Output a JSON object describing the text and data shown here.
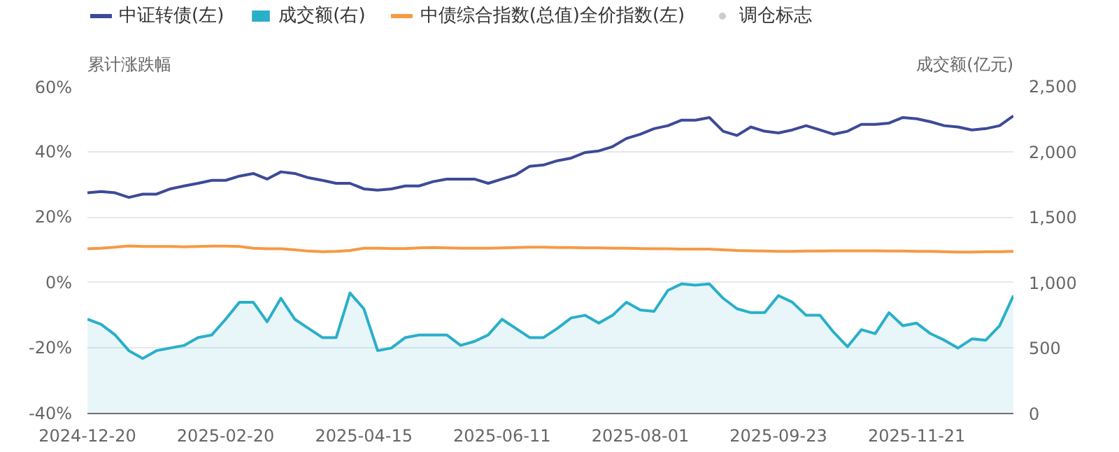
{
  "chart_data": {
    "type": "line",
    "categories": [
      "2024-12-20",
      null,
      null,
      null,
      null,
      null,
      null,
      null,
      null,
      null,
      "2025-02-20",
      null,
      null,
      null,
      null,
      null,
      null,
      null,
      null,
      null,
      "2025-04-15",
      null,
      null,
      null,
      null,
      null,
      null,
      null,
      null,
      null,
      "2025-06-11",
      null,
      null,
      null,
      null,
      null,
      null,
      null,
      null,
      null,
      "2025-08-01",
      null,
      null,
      null,
      null,
      null,
      null,
      null,
      null,
      null,
      "2025-09-23",
      null,
      null,
      null,
      null,
      null,
      null,
      null,
      null,
      null,
      "2025-11-21",
      null,
      null,
      null,
      null,
      null,
      null,
      null
    ],
    "series": [
      {
        "name": "中证转债(左)",
        "color": "#3d4a97",
        "values": [
          27.4,
          27.8,
          27.4,
          26,
          27,
          27,
          28.6,
          29.5,
          30.3,
          31.2,
          31.2,
          32.5,
          33.3,
          31.6,
          33.8,
          33.3,
          32,
          31.2,
          30.3,
          30.3,
          28.6,
          28.2,
          28.6,
          29.5,
          29.5,
          30.8,
          31.6,
          31.6,
          31.6,
          30.3,
          31.6,
          32.9,
          35.5,
          35.9,
          37.2,
          38,
          39.7,
          40.2,
          41.5,
          44,
          45.3,
          47,
          47.9,
          49.6,
          49.6,
          50.4,
          46.2,
          44.9,
          47.5,
          46.2,
          45.7,
          46.6,
          47.9,
          46.6,
          45.3,
          46.2,
          48.3,
          48.3,
          48.7,
          50.4,
          50,
          49.1,
          47.9,
          47.5,
          46.6,
          47,
          47.9,
          50.9
        ]
      },
      {
        "name": "成交额(右)",
        "type": "area",
        "axis": "y2",
        "color": "#2aafc9",
        "values": [
          720,
          680,
          600,
          480,
          420,
          480,
          500,
          520,
          580,
          600,
          720,
          850,
          850,
          700,
          880,
          720,
          650,
          580,
          580,
          920,
          800,
          480,
          500,
          580,
          600,
          600,
          600,
          520,
          550,
          600,
          720,
          650,
          580,
          580,
          650,
          730,
          750,
          690,
          750,
          850,
          790,
          780,
          940,
          990,
          980,
          990,
          880,
          800,
          770,
          770,
          900,
          850,
          750,
          750,
          620,
          510,
          640,
          610,
          770,
          670,
          690,
          610,
          560,
          500,
          570,
          560,
          670,
          900
        ]
      },
      {
        "name": "中债综合指数(总值)全价指数(左)",
        "color": "#f59a45",
        "values": [
          10.3,
          10.5,
          10.8,
          11.2,
          11,
          11,
          11,
          10.9,
          11,
          11.1,
          11.1,
          11,
          10.5,
          10.3,
          10.3,
          10,
          9.6,
          9.4,
          9.5,
          9.8,
          10.5,
          10.5,
          10.4,
          10.4,
          10.6,
          10.7,
          10.6,
          10.5,
          10.5,
          10.5,
          10.6,
          10.7,
          10.8,
          10.8,
          10.7,
          10.7,
          10.6,
          10.6,
          10.5,
          10.5,
          10.4,
          10.3,
          10.3,
          10.2,
          10.2,
          10.2,
          10,
          9.8,
          9.7,
          9.6,
          9.5,
          9.5,
          9.6,
          9.6,
          9.7,
          9.7,
          9.7,
          9.7,
          9.6,
          9.6,
          9.5,
          9.5,
          9.4,
          9.3,
          9.3,
          9.4,
          9.4,
          9.5
        ]
      },
      {
        "name": "调仓标志",
        "type": "scatter",
        "color": "#cccccc",
        "values": [
          null,
          null,
          null,
          null,
          null,
          null,
          null,
          null,
          null,
          null,
          null,
          null,
          null,
          null,
          null,
          null,
          null,
          null,
          null,
          null,
          null,
          null,
          null,
          null,
          null,
          null,
          null,
          null,
          null,
          null,
          null,
          null,
          null,
          null,
          null,
          null,
          null,
          null,
          null,
          null,
          null,
          null,
          null,
          null,
          null,
          null,
          null,
          null,
          null,
          null,
          null,
          null,
          null,
          null,
          null,
          null,
          null,
          null,
          null,
          null,
          null,
          null,
          null,
          null,
          null,
          null,
          null,
          null
        ]
      }
    ],
    "ylabel": "累计涨跌幅",
    "y2label": "成交额(亿元)",
    "ylim": [
      -40,
      60
    ],
    "yticks": [
      {
        "value": -40,
        "label": "-40%"
      },
      {
        "value": -20,
        "label": "-20%"
      },
      {
        "value": 0,
        "label": "0%"
      },
      {
        "value": 20,
        "label": "20%"
      },
      {
        "value": 40,
        "label": "40%"
      },
      {
        "value": 60,
        "label": "60%"
      }
    ],
    "y2lim": [
      0,
      2500
    ],
    "y2ticks": [
      0,
      {
        "value": 500,
        "label": "500"
      },
      {
        "value": 1000,
        "label": "1,000"
      },
      {
        "value": 1500,
        "label": "1,500"
      },
      {
        "value": 2000,
        "label": "2,000"
      },
      {
        "value": 2500,
        "label": "2,500"
      }
    ],
    "grid": "y",
    "legend": "top left",
    "marker": "none",
    "line_style": "solid"
  }
}
